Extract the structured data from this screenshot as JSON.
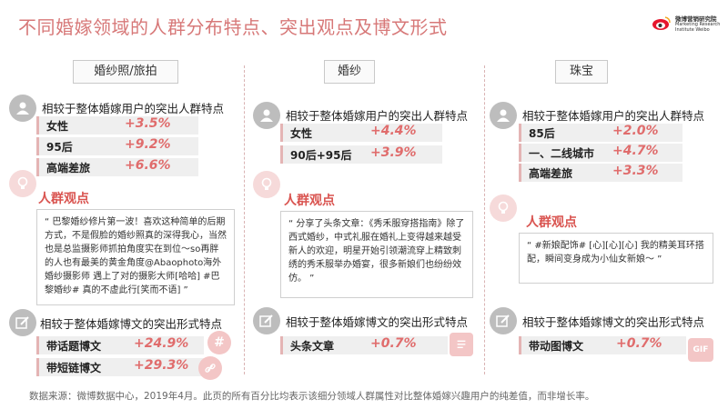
{
  "title": "不同婚嫁领域的人群分布特点、突出观点及博文形式",
  "logo": {
    "cn": "微博营销研究院",
    "en1": "Marketing Research",
    "en2": "Institute Weibo"
  },
  "sections": {
    "crowd_head": "相较于整体婚嫁用户的突出人群特点",
    "form_head": "相较于整体婚嫁博文的突出形式特点",
    "view_label": "人群观点"
  },
  "columns": [
    {
      "title": "婚纱照/旅拍",
      "crowd": [
        {
          "label": "女性",
          "value": "+3.5%"
        },
        {
          "label": "95后",
          "value": "+9.2%"
        },
        {
          "label": "高端差旅",
          "value": "+6.6%"
        }
      ],
      "quote": "“ 巴黎婚纱修片第一波！喜欢这种简单的后期方式，不是假脸的婚纱照真的深得我心，当然也是总监摄影师抓拍角度实在到位～so再胖的人也有最美的黄金角度@Abaophoto海外婚纱摄影师 遇上了对的摄影大师[哈哈] #巴黎婚纱# 真的不虚此行[笑而不语]   ”",
      "forms": [
        {
          "label": "带话题博文",
          "value": "+24.9%"
        },
        {
          "label": "带短链博文",
          "value": "+29.3%"
        }
      ]
    },
    {
      "title": "婚纱",
      "crowd": [
        {
          "label": "女性",
          "value": "+4.4%"
        },
        {
          "label": "90后+95后",
          "value": "+3.9%"
        }
      ],
      "quote": "“ 分享了头条文章：《秀禾服穿搭指南》除了西式婚纱，中式礼服在婚礼上变得越来越受新人的欢迎，明星开始引领潮流穿上精致刺绣的秀禾服举办婚宴，很多新娘们也纷纷效仿。 ”",
      "forms": [
        {
          "label": "头条文章",
          "value": "+0.7%"
        }
      ]
    },
    {
      "title": "珠宝",
      "crowd": [
        {
          "label": "85后",
          "value": "+2.0%"
        },
        {
          "label": "一、二线城市",
          "value": "+4.7%"
        },
        {
          "label": "高端差旅",
          "value": "+3.3%"
        }
      ],
      "quote": "“ #新娘配饰# [心][心][心] 我的精美耳环搭配，瞬间变身成为小仙女新娘～ ”",
      "forms": [
        {
          "label": "带动图博文",
          "value": "+0.7%"
        }
      ]
    }
  ],
  "deco": {
    "hash": "#",
    "gif": "GIF"
  },
  "footer": "数据来源：微博数据中心，2019年4月。此页的所有百分比均表示该细分领域人群属性对比整体婚嫁兴趣用户的纯差值，而非增长率。"
}
